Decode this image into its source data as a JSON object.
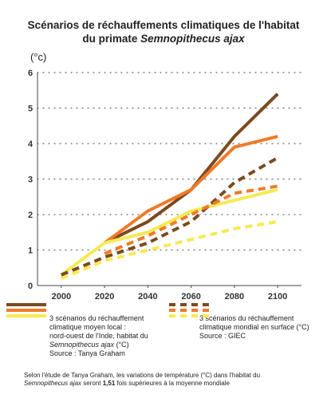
{
  "chart_data": {
    "type": "line",
    "title": [
      "Scénarios de réchauffements climatiques de l'habitat",
      "du primate ",
      "Semnopithecus ajax"
    ],
    "y_label": "(°c)",
    "x": [
      2000,
      2020,
      2040,
      2060,
      2080,
      2100
    ],
    "xlim": [
      1989,
      2111
    ],
    "xticks": [
      2000,
      2020,
      2040,
      2060,
      2080,
      2100
    ],
    "ylim": [
      0,
      6
    ],
    "yticks": [
      0,
      1,
      2,
      3,
      4,
      5,
      6
    ],
    "grid": true,
    "series": [
      {
        "color": "#7b4a1e",
        "dashed": false,
        "values": [
          null,
          1.2,
          1.8,
          2.7,
          4.2,
          5.4
        ]
      },
      {
        "color": "#f07a28",
        "dashed": false,
        "values": [
          null,
          1.2,
          2.1,
          2.7,
          3.9,
          4.2
        ]
      },
      {
        "color": "#f6ea55",
        "dashed": false,
        "values": [
          0.3,
          1.2,
          1.5,
          2.1,
          2.4,
          2.7
        ]
      },
      {
        "color": "#7b4a1e",
        "dashed": true,
        "values": [
          0.3,
          0.8,
          1.2,
          1.8,
          2.9,
          3.6
        ]
      },
      {
        "color": "#f07a28",
        "dashed": true,
        "values": [
          null,
          0.9,
          1.4,
          2.0,
          2.6,
          2.8
        ]
      },
      {
        "color": "#f6ea55",
        "dashed": true,
        "values": [
          0.2,
          0.7,
          1.0,
          1.3,
          1.6,
          1.8
        ]
      }
    ],
    "legend": {
      "local": [
        "3 scénarios du réchauffement",
        "climatique moyen local :",
        "nord-ouest de l'Inde, habitat du",
        "Semnopithecus ajax",
        " (°C)",
        "Source : Tanya Graham"
      ],
      "global": [
        "3 scénarios du réchauffement",
        "climatique mondial en surface (°C)",
        "Source : GIEC"
      ]
    },
    "footnote": [
      "Selon l'étude de Tanya Graham, les variations de température (°C) dans l'habitat du",
      "Semnopithecus ajax",
      " seront ",
      "1,51",
      " fois supérieures à la moyenne mondiale"
    ]
  }
}
